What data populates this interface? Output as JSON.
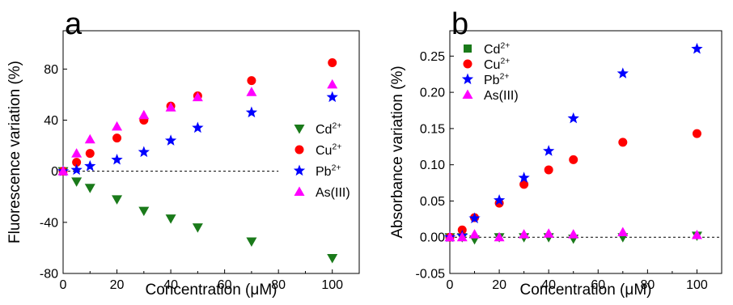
{
  "chart_data": [
    {
      "panel_label": "a",
      "type": "scatter",
      "xlabel": "Concentration (μM)",
      "ylabel": "Fluorescence variation (%)",
      "xlim": [
        0,
        110
      ],
      "ylim": [
        -80,
        110
      ],
      "xticks": [
        "0",
        "20",
        "40",
        "60",
        "80",
        "100"
      ],
      "yticks": [
        "-80",
        "-40",
        "0",
        "40",
        "80"
      ],
      "grid": false,
      "legend_placement": "right",
      "x": [
        0,
        5,
        10,
        20,
        30,
        40,
        50,
        70,
        100
      ],
      "series": [
        {
          "name": "Cd2+",
          "marker": "triangle-down",
          "color": "#1a7a1a",
          "values": [
            0,
            -8,
            -13,
            -22,
            -31,
            -37,
            -44,
            -55,
            -68
          ]
        },
        {
          "name": "Cu2+",
          "marker": "circle",
          "color": "#ff0000",
          "values": [
            0,
            7,
            14,
            26,
            40,
            51,
            59,
            71,
            85
          ]
        },
        {
          "name": "Pb2+",
          "marker": "star",
          "color": "#0000ff",
          "values": [
            0,
            1,
            4,
            9,
            15,
            24,
            34,
            46,
            58
          ]
        },
        {
          "name": "As(III)",
          "marker": "triangle-up",
          "color": "#ff00ff",
          "values": [
            0,
            14,
            25,
            35,
            44,
            50,
            58,
            62,
            68
          ]
        }
      ]
    },
    {
      "panel_label": "b",
      "type": "scatter",
      "xlabel": "Concentration (μM)",
      "ylabel": "Absorbance variation (%)",
      "xlim": [
        0,
        110
      ],
      "ylim": [
        -0.05,
        0.285
      ],
      "xticks": [
        "0",
        "20",
        "40",
        "60",
        "80",
        "100"
      ],
      "yticks": [
        "-0.05",
        "0.00",
        "0.05",
        "0.10",
        "0.15",
        "0.20",
        "0.25"
      ],
      "grid": false,
      "legend_placement": "top-left",
      "x": [
        0,
        5,
        10,
        20,
        30,
        40,
        50,
        70,
        100
      ],
      "series": [
        {
          "name": "Cd2+",
          "marker": "square",
          "color": "#1a7a1a",
          "values": [
            0,
            0,
            -0.003,
            0,
            0,
            0,
            -0.002,
            0,
            0.002
          ]
        },
        {
          "name": "Cu2+",
          "marker": "circle",
          "color": "#ff0000",
          "values": [
            0,
            0.01,
            0.027,
            0.047,
            0.073,
            0.093,
            0.107,
            0.131,
            0.143
          ]
        },
        {
          "name": "Pb2+",
          "marker": "star",
          "color": "#0000ff",
          "values": [
            0,
            0.002,
            0.026,
            0.051,
            0.082,
            0.119,
            0.164,
            0.226,
            0.26
          ]
        },
        {
          "name": "As(III)",
          "marker": "triangle-up",
          "color": "#ff00ff",
          "values": [
            0,
            0,
            0.004,
            0,
            0.004,
            0.005,
            0.004,
            0.007,
            0.003
          ]
        }
      ],
      "points_drawn_in_chart": {
        "Cd2+": "triangle-down"
      }
    }
  ]
}
